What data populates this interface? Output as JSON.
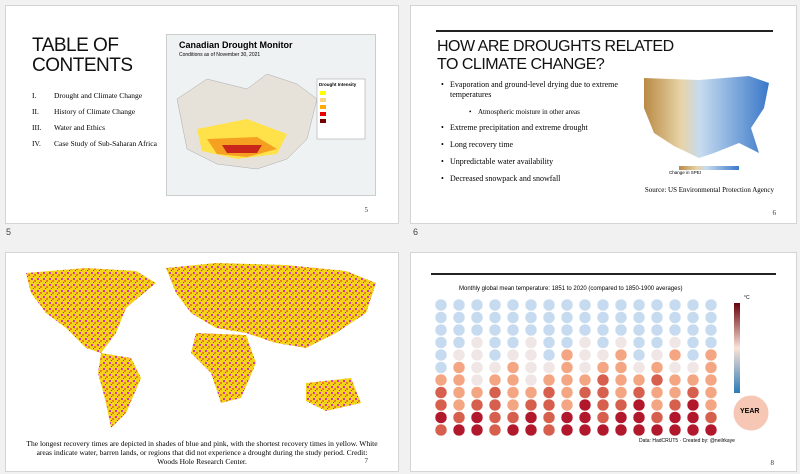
{
  "slides": [
    {
      "title": "TABLE OF CONTENTS",
      "items": [
        {
          "numeral": "I.",
          "text": "Drought and Climate Change"
        },
        {
          "numeral": "II.",
          "text": "History of Climate Change"
        },
        {
          "numeral": "III.",
          "text": "Water and Ethics"
        },
        {
          "numeral": "IV.",
          "text": "Case Study of Sub-Saharan Africa"
        }
      ],
      "image": {
        "title": "Canadian Drought Monitor",
        "subtitle": "Conditions as of November 30, 2021",
        "legend_title": "Drought Intensity"
      },
      "number": "5",
      "caption": "5"
    },
    {
      "title": "HOW ARE DROUGHTS RELATED TO CLIMATE CHANGE?",
      "bullets": [
        "Evaporation and ground-level drying due to extreme temperatures",
        "Atmospheric moisture in other areas",
        "Extreme precipitation and extreme drought",
        "Long recovery time",
        "Unpredictable water availability",
        "Decreased snowpack and snowfall"
      ],
      "image": {
        "legend_title": "Change in SPEI"
      },
      "source": "Source: US Environmental Protection Agency",
      "number": "6",
      "caption": "6"
    },
    {
      "text": "The longest recovery times are depicted in shades of blue and pink, with the shortest recovery times in yellow. White areas indicate water, barren lands, or regions that did not experience a drought during the study period. Credit: Woods Hole Research Center.",
      "number": "7"
    },
    {
      "image": {
        "title": "Monthly global mean temperature: 1851 to 2020 (compared to 1850-1900 averages)",
        "unit": "°C",
        "center_label": "YEAR",
        "footer": "Data: HadCRUT5 · Created by: @neilrkaye"
      },
      "number": "8"
    }
  ]
}
